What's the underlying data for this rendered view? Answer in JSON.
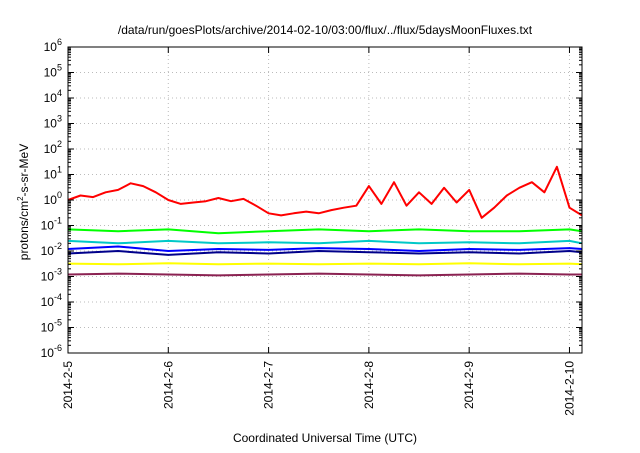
{
  "chart_data": {
    "type": "line",
    "title": "/data/run/goesPlots/archive/2014-02-10/03:00/flux/../flux/5daysMoonFluxes.txt",
    "xlabel": "Coordinated Universal Time (UTC)",
    "ylabel": {
      "base": "protons/cm",
      "sup": "2",
      "rest": "-s-sr-MeV"
    },
    "x_scale": "time",
    "x_range": [
      "2014-02-05T00:00",
      "2014-02-10T03:00"
    ],
    "x_ticks": [
      {
        "t": "2014-02-05T00:00",
        "label": "2014-2-5"
      },
      {
        "t": "2014-02-06T00:00",
        "label": "2014-2-6"
      },
      {
        "t": "2014-02-07T00:00",
        "label": "2014-2-7"
      },
      {
        "t": "2014-02-08T00:00",
        "label": "2014-2-8"
      },
      {
        "t": "2014-02-09T00:00",
        "label": "2014-2-9"
      },
      {
        "t": "2014-02-10T00:00",
        "label": "2014-2-10"
      }
    ],
    "y_scale": "log",
    "y_range": [
      1e-06,
      1000000.0
    ],
    "y_ticks": [
      {
        "base": "10",
        "exp": "-6"
      },
      {
        "base": "10",
        "exp": "-5"
      },
      {
        "base": "10",
        "exp": "-4"
      },
      {
        "base": "10",
        "exp": "-3"
      },
      {
        "base": "10",
        "exp": "-2"
      },
      {
        "base": "10",
        "exp": "-1"
      },
      {
        "base": "10",
        "exp": "0"
      },
      {
        "base": "10",
        "exp": "1"
      },
      {
        "base": "10",
        "exp": "2"
      },
      {
        "base": "10",
        "exp": "3"
      },
      {
        "base": "10",
        "exp": "4"
      },
      {
        "base": "10",
        "exp": "5"
      },
      {
        "base": "10",
        "exp": "6"
      }
    ],
    "grid": true,
    "series": [
      {
        "color": "#ff0000",
        "x": [
          "2014-02-05T00:00",
          "2014-02-05T03:00",
          "2014-02-05T06:00",
          "2014-02-05T09:00",
          "2014-02-05T12:00",
          "2014-02-05T15:00",
          "2014-02-05T18:00",
          "2014-02-05T21:00",
          "2014-02-06T00:00",
          "2014-02-06T03:00",
          "2014-02-06T06:00",
          "2014-02-06T09:00",
          "2014-02-06T12:00",
          "2014-02-06T15:00",
          "2014-02-06T18:00",
          "2014-02-06T21:00",
          "2014-02-07T00:00",
          "2014-02-07T03:00",
          "2014-02-07T06:00",
          "2014-02-07T09:00",
          "2014-02-07T12:00",
          "2014-02-07T15:00",
          "2014-02-07T18:00",
          "2014-02-07T21:00",
          "2014-02-08T00:00",
          "2014-02-08T03:00",
          "2014-02-08T06:00",
          "2014-02-08T09:00",
          "2014-02-08T12:00",
          "2014-02-08T15:00",
          "2014-02-08T18:00",
          "2014-02-08T21:00",
          "2014-02-09T00:00",
          "2014-02-09T03:00",
          "2014-02-09T06:00",
          "2014-02-09T09:00",
          "2014-02-09T12:00",
          "2014-02-09T15:00",
          "2014-02-09T18:00",
          "2014-02-09T21:00",
          "2014-02-10T00:00",
          "2014-02-10T03:00"
        ],
        "values": [
          1.0,
          1.5,
          1.3,
          2.0,
          2.5,
          4.5,
          3.5,
          2.0,
          1.0,
          0.7,
          0.8,
          0.9,
          1.2,
          0.9,
          1.1,
          0.6,
          0.3,
          0.25,
          0.3,
          0.35,
          0.3,
          0.4,
          0.5,
          0.6,
          3.5,
          0.7,
          5.0,
          0.6,
          2.0,
          0.7,
          3.0,
          0.8,
          2.5,
          0.2,
          0.5,
          1.5,
          3.0,
          5.0,
          2.0,
          20.0,
          0.5,
          0.25
        ]
      },
      {
        "color": "#00ff00",
        "x": [
          "2014-02-05T00:00",
          "2014-02-05T12:00",
          "2014-02-06T00:00",
          "2014-02-06T12:00",
          "2014-02-07T00:00",
          "2014-02-07T12:00",
          "2014-02-08T00:00",
          "2014-02-08T12:00",
          "2014-02-09T00:00",
          "2014-02-09T12:00",
          "2014-02-10T00:00",
          "2014-02-10T03:00"
        ],
        "values": [
          0.07,
          0.06,
          0.07,
          0.05,
          0.06,
          0.07,
          0.06,
          0.07,
          0.06,
          0.06,
          0.07,
          0.06
        ]
      },
      {
        "color": "#00c8c8",
        "x": [
          "2014-02-05T00:00",
          "2014-02-05T12:00",
          "2014-02-06T00:00",
          "2014-02-06T12:00",
          "2014-02-07T00:00",
          "2014-02-07T12:00",
          "2014-02-08T00:00",
          "2014-02-08T12:00",
          "2014-02-09T00:00",
          "2014-02-09T12:00",
          "2014-02-10T00:00",
          "2014-02-10T03:00"
        ],
        "values": [
          0.025,
          0.02,
          0.025,
          0.02,
          0.022,
          0.02,
          0.025,
          0.02,
          0.022,
          0.02,
          0.025,
          0.02
        ]
      },
      {
        "color": "#0000ff",
        "x": [
          "2014-02-05T00:00",
          "2014-02-05T12:00",
          "2014-02-06T00:00",
          "2014-02-06T12:00",
          "2014-02-07T00:00",
          "2014-02-07T12:00",
          "2014-02-08T00:00",
          "2014-02-08T12:00",
          "2014-02-09T00:00",
          "2014-02-09T12:00",
          "2014-02-10T00:00",
          "2014-02-10T03:00"
        ],
        "values": [
          0.012,
          0.015,
          0.01,
          0.012,
          0.011,
          0.013,
          0.012,
          0.01,
          0.012,
          0.011,
          0.013,
          0.012
        ]
      },
      {
        "color": "#00008b",
        "x": [
          "2014-02-05T00:00",
          "2014-02-05T12:00",
          "2014-02-06T00:00",
          "2014-02-06T12:00",
          "2014-02-07T00:00",
          "2014-02-07T12:00",
          "2014-02-08T00:00",
          "2014-02-08T12:00",
          "2014-02-09T00:00",
          "2014-02-09T12:00",
          "2014-02-10T00:00",
          "2014-02-10T03:00"
        ],
        "values": [
          0.008,
          0.01,
          0.007,
          0.009,
          0.008,
          0.01,
          0.009,
          0.008,
          0.009,
          0.008,
          0.01,
          0.009
        ]
      },
      {
        "color": "#ffff00",
        "x": [
          "2014-02-05T00:00",
          "2014-02-05T12:00",
          "2014-02-06T00:00",
          "2014-02-06T12:00",
          "2014-02-07T00:00",
          "2014-02-07T12:00",
          "2014-02-08T00:00",
          "2014-02-08T12:00",
          "2014-02-09T00:00",
          "2014-02-09T12:00",
          "2014-02-10T00:00",
          "2014-02-10T03:00"
        ],
        "values": [
          0.0032,
          0.003,
          0.0033,
          0.003,
          0.0032,
          0.003,
          0.0032,
          0.003,
          0.0033,
          0.003,
          0.0032,
          0.003
        ]
      },
      {
        "color": "#8b2252",
        "x": [
          "2014-02-05T00:00",
          "2014-02-05T12:00",
          "2014-02-06T00:00",
          "2014-02-06T12:00",
          "2014-02-07T00:00",
          "2014-02-07T12:00",
          "2014-02-08T00:00",
          "2014-02-08T12:00",
          "2014-02-09T00:00",
          "2014-02-09T12:00",
          "2014-02-10T00:00",
          "2014-02-10T03:00"
        ],
        "values": [
          0.0012,
          0.0013,
          0.0012,
          0.0011,
          0.0012,
          0.0013,
          0.0012,
          0.0011,
          0.0012,
          0.0013,
          0.0012,
          0.0012
        ]
      }
    ]
  }
}
